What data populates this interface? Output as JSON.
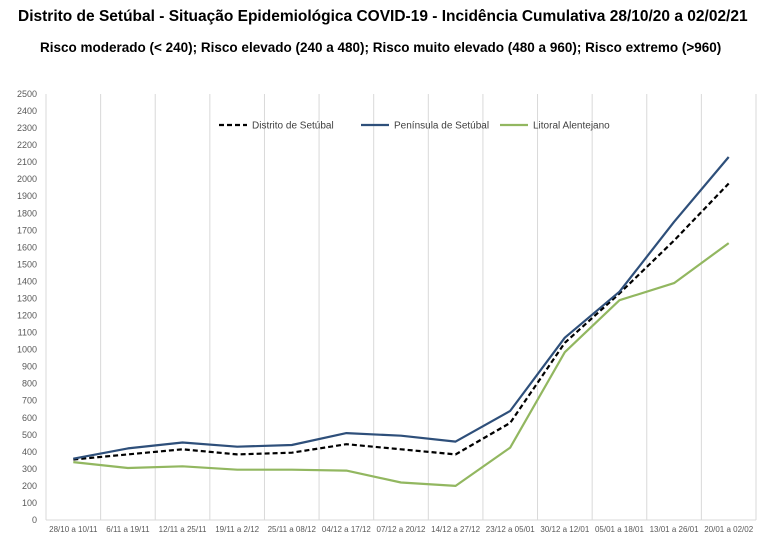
{
  "title": "Distrito de Setúbal - Situação Epidemiológica COVID-19 - Incidência Cumulativa  28/10/20 a 02/02/21",
  "subtitle": "Risco moderado (< 240); Risco elevado (240 a 480); Risco muito elevado (480 a 960);  Risco extremo (>960)",
  "chart_data": {
    "type": "line",
    "categories": [
      "28/10 a 10/11",
      "6/11 a 19/11",
      "12/11 a 25/11",
      "19/11 a 2/12",
      "25/11 a 08/12",
      "04/12 a 17/12",
      "07/12 a 20/12",
      "14/12 a 27/12",
      "23/12 a 05/01",
      "30/12 a 12/01",
      "05/01 a 18/01",
      "13/01 a 26/01",
      "20/01 a 02/02"
    ],
    "ylim": [
      0,
      2500
    ],
    "yticks": [
      0,
      100,
      200,
      300,
      400,
      500,
      600,
      700,
      800,
      900,
      1000,
      1100,
      1200,
      1300,
      1400,
      1500,
      1600,
      1700,
      1800,
      1900,
      2000,
      2100,
      2200,
      2300,
      2400,
      2500
    ],
    "grid": "vertical",
    "legend": "top",
    "series": [
      {
        "name": "Distrito de Setúbal",
        "color": "#000000",
        "dash": true,
        "values": [
          355,
          385,
          415,
          385,
          395,
          445,
          415,
          385,
          570,
          1040,
          1330,
          1640,
          1975
        ]
      },
      {
        "name": "Península de Setúbal",
        "color": "#2e4f7a",
        "dash": false,
        "values": [
          360,
          420,
          455,
          430,
          440,
          510,
          495,
          460,
          640,
          1070,
          1340,
          1750,
          2130
        ]
      },
      {
        "name": "Litoral Alentejano",
        "color": "#92b760",
        "dash": false,
        "values": [
          340,
          305,
          315,
          295,
          295,
          290,
          220,
          200,
          425,
          985,
          1290,
          1390,
          1625
        ]
      }
    ]
  }
}
